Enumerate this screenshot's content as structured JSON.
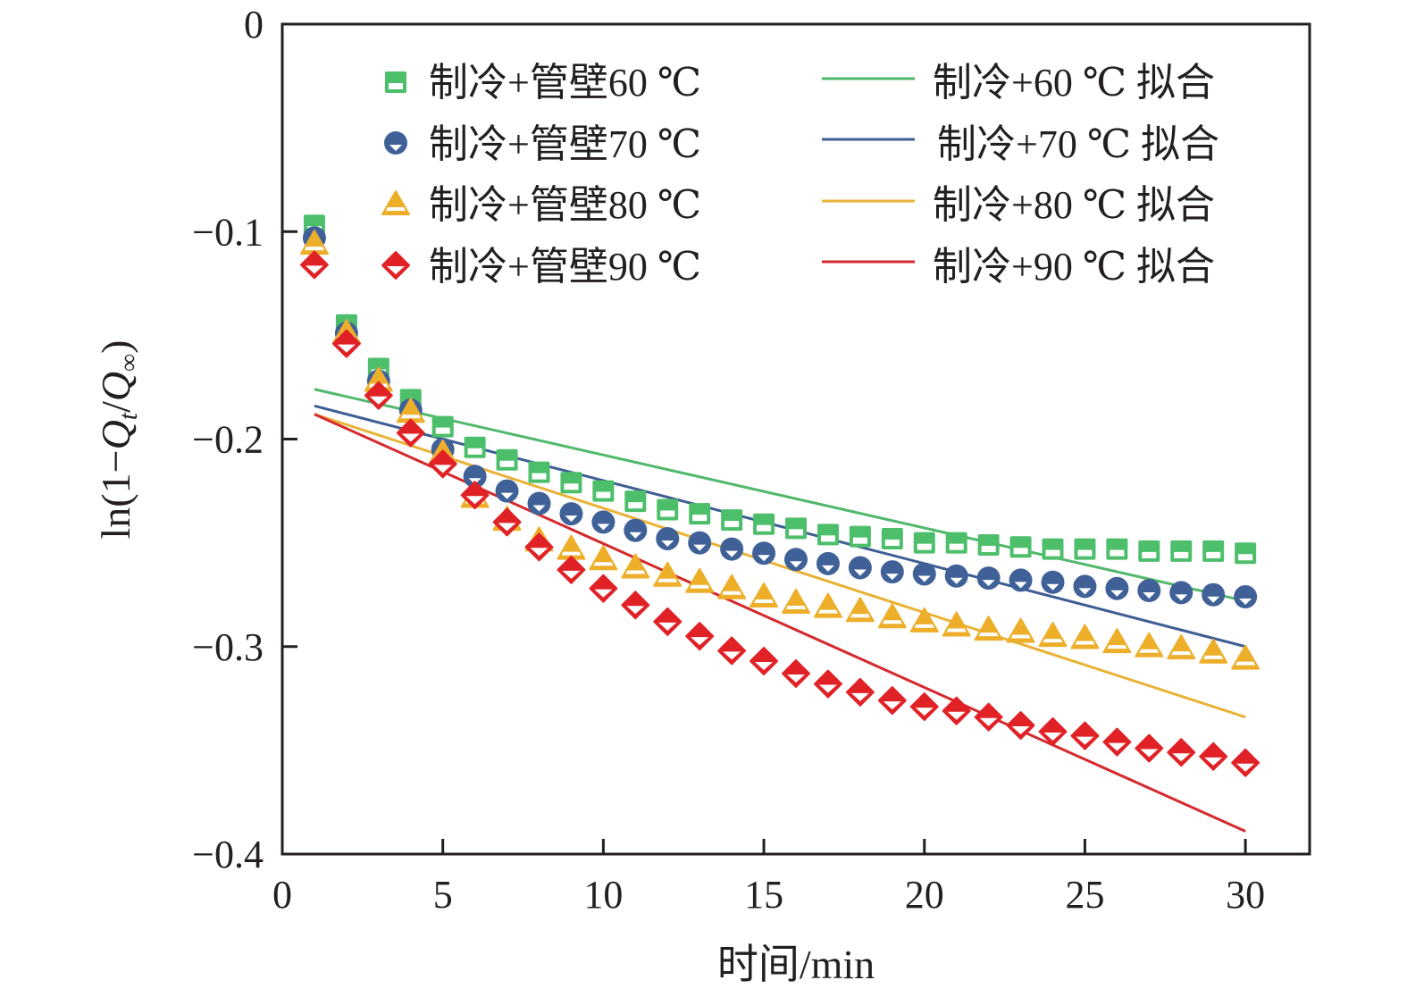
{
  "chart_data": {
    "type": "scatter",
    "title": "",
    "xlabel": "时间/min",
    "ylabel": {
      "prefix": "ln(1−",
      "q1": "Q",
      "sub1": "t",
      "slash": "/",
      "q2": "Q",
      "sub2": "∞",
      "suffix": ")"
    },
    "xlim": [
      0,
      32
    ],
    "ylim": [
      -0.4,
      0
    ],
    "xticks": [
      0,
      5,
      10,
      15,
      20,
      25,
      30
    ],
    "xtick_labels": [
      "0",
      "5",
      "10",
      "15",
      "20",
      "25",
      "30"
    ],
    "yticks": [
      0,
      -0.1,
      -0.2,
      -0.3,
      -0.4
    ],
    "ytick_labels": [
      "0",
      "−0.1",
      "−0.2",
      "−0.3",
      "−0.4"
    ],
    "grid": false,
    "legend_position": "top",
    "x": [
      1,
      2,
      3,
      4,
      5,
      6,
      7,
      8,
      9,
      10,
      11,
      12,
      13,
      14,
      15,
      16,
      17,
      18,
      19,
      20,
      21,
      22,
      23,
      24,
      25,
      26,
      27,
      28,
      29,
      30
    ],
    "series": [
      {
        "name": "制冷+管壁60 ℃",
        "marker": "square",
        "color": "#4dbf6b",
        "values": [
          -0.097,
          -0.145,
          -0.166,
          -0.181,
          -0.194,
          -0.204,
          -0.21,
          -0.216,
          -0.221,
          -0.225,
          -0.23,
          -0.234,
          -0.236,
          -0.239,
          -0.241,
          -0.243,
          -0.246,
          -0.247,
          -0.248,
          -0.25,
          -0.25,
          -0.251,
          -0.252,
          -0.253,
          -0.253,
          -0.253,
          -0.254,
          -0.254,
          -0.254,
          -0.255
        ]
      },
      {
        "name": "制冷+管壁70 ℃",
        "marker": "circle",
        "color": "#3f6197",
        "values": [
          -0.103,
          -0.149,
          -0.172,
          -0.186,
          -0.205,
          -0.218,
          -0.225,
          -0.231,
          -0.236,
          -0.24,
          -0.244,
          -0.248,
          -0.25,
          -0.253,
          -0.255,
          -0.258,
          -0.26,
          -0.262,
          -0.264,
          -0.265,
          -0.266,
          -0.267,
          -0.268,
          -0.269,
          -0.271,
          -0.272,
          -0.273,
          -0.274,
          -0.275,
          -0.276
        ]
      },
      {
        "name": "制冷+管壁80 ℃",
        "marker": "triangle",
        "color": "#edae2a",
        "values": [
          -0.106,
          -0.149,
          -0.172,
          -0.187,
          -0.207,
          -0.228,
          -0.239,
          -0.249,
          -0.253,
          -0.258,
          -0.262,
          -0.266,
          -0.269,
          -0.272,
          -0.276,
          -0.279,
          -0.281,
          -0.283,
          -0.286,
          -0.288,
          -0.29,
          -0.292,
          -0.293,
          -0.295,
          -0.296,
          -0.298,
          -0.3,
          -0.301,
          -0.303,
          -0.306
        ]
      },
      {
        "name": "制冷+管壁90 ℃",
        "marker": "diamond",
        "color": "#e02227",
        "values": [
          -0.116,
          -0.154,
          -0.179,
          -0.197,
          -0.212,
          -0.227,
          -0.24,
          -0.252,
          -0.263,
          -0.272,
          -0.28,
          -0.288,
          -0.295,
          -0.302,
          -0.307,
          -0.313,
          -0.318,
          -0.322,
          -0.326,
          -0.329,
          -0.331,
          -0.334,
          -0.338,
          -0.341,
          -0.343,
          -0.346,
          -0.349,
          -0.351,
          -0.353,
          -0.356
        ]
      }
    ],
    "fits": [
      {
        "name": "制冷+60 ℃ 拟合",
        "color": "#52b86b",
        "x": [
          1,
          30
        ],
        "values": [
          -0.176,
          -0.278
        ]
      },
      {
        "name": "制冷+70 ℃ 拟合",
        "color": "#3e5f94",
        "x": [
          1,
          30
        ],
        "values": [
          -0.184,
          -0.3
        ]
      },
      {
        "name": "制冷+80 ℃ 拟合",
        "color": "#e9b338",
        "x": [
          1,
          30
        ],
        "values": [
          -0.188,
          -0.334
        ]
      },
      {
        "name": "制冷+90 ℃ 拟合",
        "color": "#d42a2e",
        "x": [
          1,
          30
        ],
        "values": [
          -0.188,
          -0.389
        ]
      }
    ]
  }
}
